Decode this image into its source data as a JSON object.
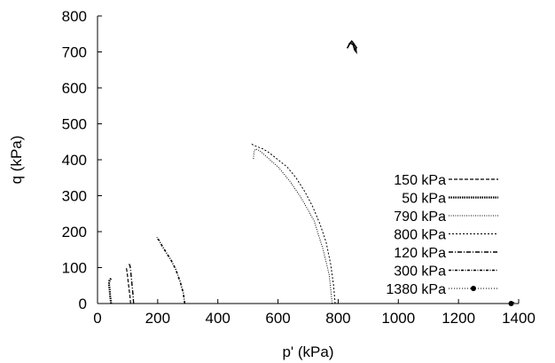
{
  "chart_data": {
    "type": "line",
    "xlabel": "p' (kPa)",
    "ylabel": "q (kPa)",
    "xlim": [
      0,
      1400
    ],
    "ylim": [
      0,
      800
    ],
    "xticks": [
      "0",
      "200",
      "400",
      "600",
      "800",
      "1000",
      "1200",
      "1400"
    ],
    "yticks": [
      "0",
      "100",
      "200",
      "300",
      "400",
      "500",
      "600",
      "700",
      "800"
    ],
    "grid": false,
    "legend_position": "right-center",
    "series": [
      {
        "name": "150 kPa",
        "style": "dashed",
        "color": "#000000",
        "x": [
          110,
          108,
          105,
          102,
          100,
          98,
          96,
          95
        ],
        "y": [
          0,
          20,
          40,
          60,
          75,
          88,
          98,
          100
        ]
      },
      {
        "name": "50 kPa",
        "style": "dotted-thick",
        "color": "#000000",
        "x": [
          45,
          42,
          40,
          38,
          40,
          45
        ],
        "y": [
          0,
          20,
          40,
          55,
          65,
          70
        ]
      },
      {
        "name": "790 kPa",
        "style": "thin-dotted",
        "color": "#000000",
        "x": [
          780,
          770,
          750,
          720,
          680,
          640,
          600,
          560,
          540,
          525,
          520,
          518
        ],
        "y": [
          0,
          80,
          150,
          230,
          290,
          340,
          380,
          410,
          425,
          430,
          420,
          400
        ]
      },
      {
        "name": "800 kPa",
        "style": "thin-dashed",
        "color": "#000000",
        "x": [
          790,
          785,
          775,
          760,
          740,
          715,
          690,
          660,
          630,
          600,
          570,
          550,
          535,
          520,
          510
        ],
        "y": [
          0,
          50,
          110,
          170,
          220,
          270,
          310,
          350,
          380,
          400,
          420,
          430,
          435,
          440,
          445
        ]
      },
      {
        "name": "120 kPa",
        "style": "dash-dot",
        "color": "#000000",
        "x": [
          120,
          118,
          115,
          112,
          110,
          108,
          105
        ],
        "y": [
          0,
          25,
          50,
          75,
          95,
          105,
          110
        ]
      },
      {
        "name": "300 kPa",
        "style": "dash-dot-dense",
        "color": "#000000",
        "x": [
          290,
          285,
          275,
          260,
          245,
          230,
          215,
          205,
          200,
          198
        ],
        "y": [
          0,
          30,
          60,
          95,
          120,
          140,
          160,
          175,
          180,
          185
        ]
      },
      {
        "name": "1380 kPa",
        "style": "marker-dot",
        "color": "#000000",
        "x": [
          1375,
          1380,
          1390
        ],
        "y": [
          0,
          2,
          5
        ]
      }
    ],
    "extra_path": {
      "note_none": "",
      "x": [
        830,
        840,
        850,
        855,
        860,
        858,
        862,
        850,
        845,
        835
      ],
      "y": [
        710,
        725,
        720,
        705,
        700,
        715,
        710,
        725,
        730,
        720
      ]
    }
  }
}
